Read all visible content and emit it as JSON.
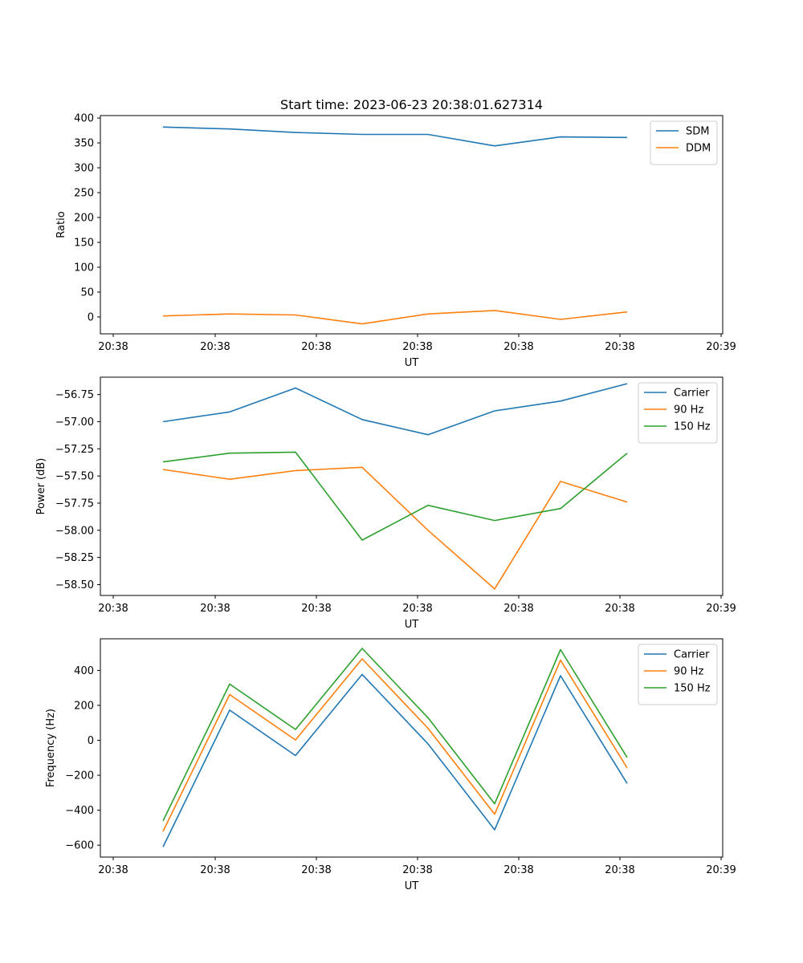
{
  "figure_title": "Start time: 2023-06-23 20:38:01.627314",
  "chart_data": [
    {
      "type": "line",
      "title": "Start time: 2023-06-23 20:38:01.627314",
      "xlabel": "UT",
      "ylabel": "Ratio",
      "x_tick_labels": [
        "20:38",
        "20:38",
        "20:38",
        "20:38",
        "20:38",
        "20:38",
        "20:39"
      ],
      "y_ticks": [
        0,
        50,
        100,
        150,
        200,
        250,
        300,
        350,
        400
      ],
      "y_tick_labels": [
        "0",
        "50",
        "100",
        "150",
        "200",
        "250",
        "300",
        "350",
        "400"
      ],
      "ylim": [
        -34,
        405
      ],
      "legend": "top-right",
      "grid": false,
      "series": [
        {
          "name": "SDM",
          "color": "#1f77b4",
          "values": [
            382,
            378,
            371,
            367,
            367,
            344,
            362,
            361
          ]
        },
        {
          "name": "DDM",
          "color": "#ff7f0e",
          "values": [
            2,
            6,
            4,
            -14,
            6,
            13,
            -5,
            10
          ]
        }
      ]
    },
    {
      "type": "line",
      "xlabel": "UT",
      "ylabel": "Power (dB)",
      "x_tick_labels": [
        "20:38",
        "20:38",
        "20:38",
        "20:38",
        "20:38",
        "20:38",
        "20:39"
      ],
      "y_ticks": [
        -58.5,
        -58.25,
        -58.0,
        -57.75,
        -57.5,
        -57.25,
        -57.0,
        -56.75
      ],
      "y_tick_labels": [
        "−58.50",
        "−58.25",
        "−58.00",
        "−57.75",
        "−57.50",
        "−57.25",
        "−57.00",
        "−56.75"
      ],
      "ylim": [
        -58.6,
        -56.59
      ],
      "legend": "top-right",
      "grid": false,
      "series": [
        {
          "name": "Carrier",
          "color": "#1f77b4",
          "values": [
            -57.0,
            -56.91,
            -56.69,
            -56.98,
            -57.12,
            -56.9,
            -56.81,
            -56.65
          ]
        },
        {
          "name": "90 Hz",
          "color": "#ff7f0e",
          "values": [
            -57.44,
            -57.53,
            -57.45,
            -57.42,
            -58.0,
            -58.54,
            -57.55,
            -57.74
          ]
        },
        {
          "name": "150 Hz",
          "color": "#2ca02c",
          "values": [
            -57.37,
            -57.29,
            -57.28,
            -58.09,
            -57.77,
            -57.91,
            -57.8,
            -57.29
          ]
        }
      ]
    },
    {
      "type": "line",
      "xlabel": "UT",
      "ylabel": "Frequency (Hz)",
      "x_tick_labels": [
        "20:38",
        "20:38",
        "20:38",
        "20:38",
        "20:38",
        "20:38",
        "20:39"
      ],
      "y_ticks": [
        -600,
        -400,
        -200,
        0,
        200,
        400
      ],
      "y_tick_labels": [
        "−600",
        "−400",
        "−200",
        "0",
        "200",
        "400"
      ],
      "ylim": [
        -668,
        581
      ],
      "legend": "top-right",
      "grid": false,
      "series": [
        {
          "name": "Carrier",
          "color": "#1f77b4",
          "values": [
            -610,
            173,
            -87,
            377,
            -20,
            -512,
            370,
            -247
          ]
        },
        {
          "name": "90 Hz",
          "color": "#ff7f0e",
          "values": [
            -521,
            262,
            2,
            466,
            69,
            -423,
            459,
            -158
          ]
        },
        {
          "name": "150 Hz",
          "color": "#2ca02c",
          "values": [
            -461,
            322,
            62,
            526,
            129,
            -363,
            519,
            -98
          ]
        }
      ]
    }
  ]
}
